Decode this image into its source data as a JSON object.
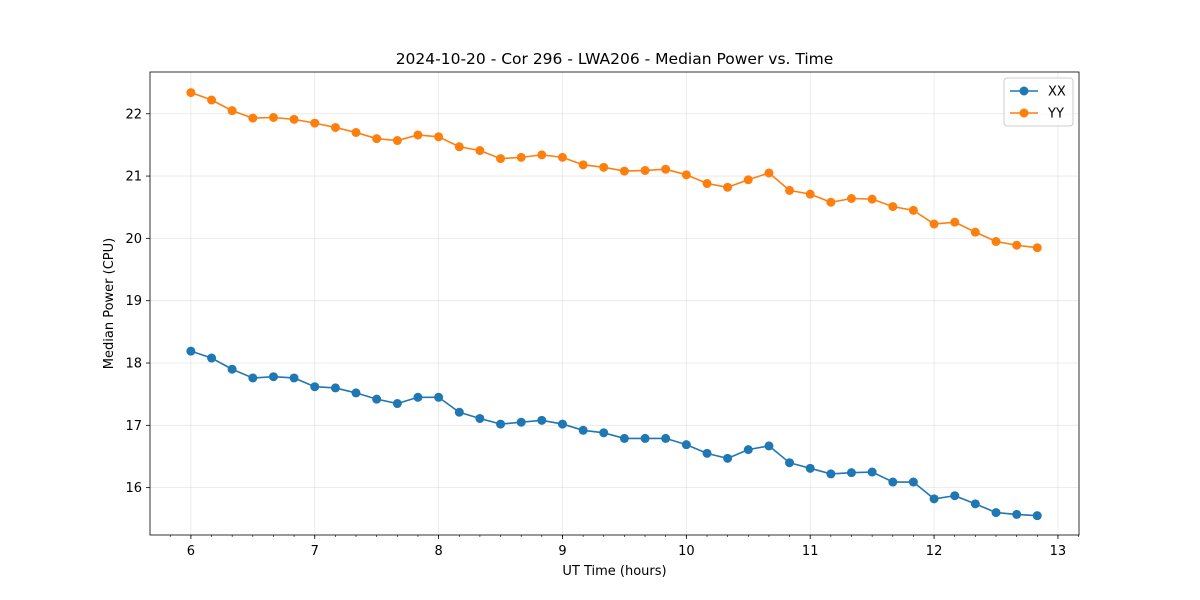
{
  "chart_data": {
    "type": "line",
    "title": "2024-10-20 - Cor 296 - LWA206 - Median Power vs. Time",
    "xlabel": "UT Time (hours)",
    "ylabel": "Median Power (CPU)",
    "xlim": [
      5.67,
      13.17
    ],
    "ylim": [
      15.24,
      22.67
    ],
    "xticks": [
      6,
      7,
      8,
      9,
      10,
      11,
      12,
      13
    ],
    "yticks": [
      16,
      17,
      18,
      19,
      20,
      21,
      22
    ],
    "grid": true,
    "legend_position": "top-right",
    "x": [
      6.0,
      6.167,
      6.333,
      6.5,
      6.667,
      6.833,
      7.0,
      7.167,
      7.333,
      7.5,
      7.667,
      7.833,
      8.0,
      8.167,
      8.333,
      8.5,
      8.667,
      8.833,
      9.0,
      9.167,
      9.333,
      9.5,
      9.667,
      9.833,
      10.0,
      10.167,
      10.333,
      10.5,
      10.667,
      10.833,
      11.0,
      11.167,
      11.333,
      11.5,
      11.667,
      11.833,
      12.0,
      12.167,
      12.333,
      12.5,
      12.667,
      12.833
    ],
    "series": [
      {
        "name": "XX",
        "color": "#1f77b4",
        "values": [
          18.19,
          18.08,
          17.9,
          17.76,
          17.78,
          17.76,
          17.62,
          17.6,
          17.52,
          17.42,
          17.35,
          17.45,
          17.45,
          17.21,
          17.11,
          17.02,
          17.05,
          17.08,
          17.02,
          16.92,
          16.88,
          16.79,
          16.79,
          16.79,
          16.69,
          16.55,
          16.47,
          16.61,
          16.67,
          16.4,
          16.31,
          16.22,
          16.24,
          16.25,
          16.09,
          16.09,
          15.82,
          15.87,
          15.74,
          15.6,
          15.57,
          15.55
        ]
      },
      {
        "name": "YY",
        "color": "#ff7f0e",
        "values": [
          22.34,
          22.22,
          22.05,
          21.93,
          21.94,
          21.91,
          21.85,
          21.78,
          21.7,
          21.6,
          21.57,
          21.66,
          21.63,
          21.47,
          21.41,
          21.28,
          21.3,
          21.34,
          21.3,
          21.18,
          21.14,
          21.08,
          21.09,
          21.11,
          21.02,
          20.88,
          20.82,
          20.94,
          21.05,
          20.77,
          20.71,
          20.58,
          20.64,
          20.63,
          20.51,
          20.45,
          20.23,
          20.26,
          20.1,
          19.95,
          19.89,
          19.85
        ]
      }
    ]
  }
}
